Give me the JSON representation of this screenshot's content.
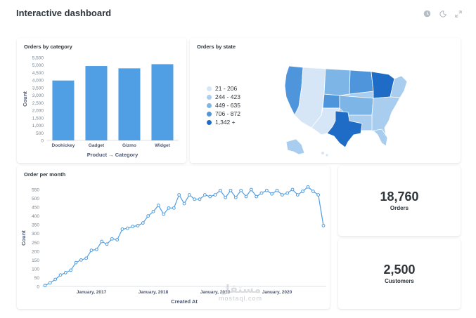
{
  "dashboard": {
    "title": "Interactive dashboard",
    "icons": [
      "clock-icon",
      "moon-icon",
      "fullscreen-icon"
    ]
  },
  "category_card": {
    "title": "Orders by category",
    "chart_data": {
      "type": "bar",
      "categories": [
        "Doohickey",
        "Gadget",
        "Gizmo",
        "Widget"
      ],
      "values": [
        3976,
        4939,
        4784,
        5061
      ],
      "xlabel": "Product → Category",
      "ylabel": "Count",
      "ylim": [
        0,
        5500
      ],
      "yticks": [
        "0",
        "500",
        "1,000",
        "1,500",
        "2,000",
        "2,500",
        "3,000",
        "3,500",
        "4,000",
        "4,500",
        "5,000",
        "5,500"
      ],
      "color": "#509ee3"
    }
  },
  "state_card": {
    "title": "Orders by state",
    "legend": [
      {
        "label": "21 - 206",
        "color": "#d6e6f6"
      },
      {
        "label": "244 - 423",
        "color": "#a9cdee"
      },
      {
        "label": "449 - 635",
        "color": "#7db5e7"
      },
      {
        "label": "706 - 872",
        "color": "#4f95dc"
      },
      {
        "label": "1,342 +",
        "color": "#1e6cc5"
      }
    ]
  },
  "month_card": {
    "title": "Order per month",
    "chart_data": {
      "type": "line",
      "xlabel": "Created At",
      "ylabel": "Count",
      "ylim": [
        0,
        550
      ],
      "yticks": [
        "0",
        "50",
        "100",
        "150",
        "200",
        "250",
        "300",
        "350",
        "400",
        "450",
        "500",
        "550"
      ],
      "xticks": [
        {
          "label": "January, 2017",
          "index": 9
        },
        {
          "label": "January, 2018",
          "index": 21
        },
        {
          "label": "January, 2019",
          "index": 33
        },
        {
          "label": "January, 2020",
          "index": 45
        }
      ],
      "series": [
        {
          "values": [
            5,
            20,
            40,
            65,
            78,
            92,
            135,
            150,
            160,
            205,
            210,
            255,
            240,
            270,
            265,
            325,
            330,
            340,
            345,
            360,
            400,
            425,
            460,
            410,
            445,
            445,
            520,
            470,
            520,
            495,
            495,
            520,
            510,
            520,
            545,
            505,
            545,
            505,
            545,
            510,
            550,
            510,
            530,
            545,
            525,
            545,
            520,
            530,
            550,
            520,
            540,
            565,
            540,
            520,
            345
          ]
        }
      ],
      "color": "#509ee3"
    }
  },
  "orders_card": {
    "value": "18,760",
    "label": "Orders"
  },
  "customers_card": {
    "value": "2,500",
    "label": "Customers"
  },
  "watermark": {
    "logo": "مستقل",
    "text": "mostaql.com"
  }
}
